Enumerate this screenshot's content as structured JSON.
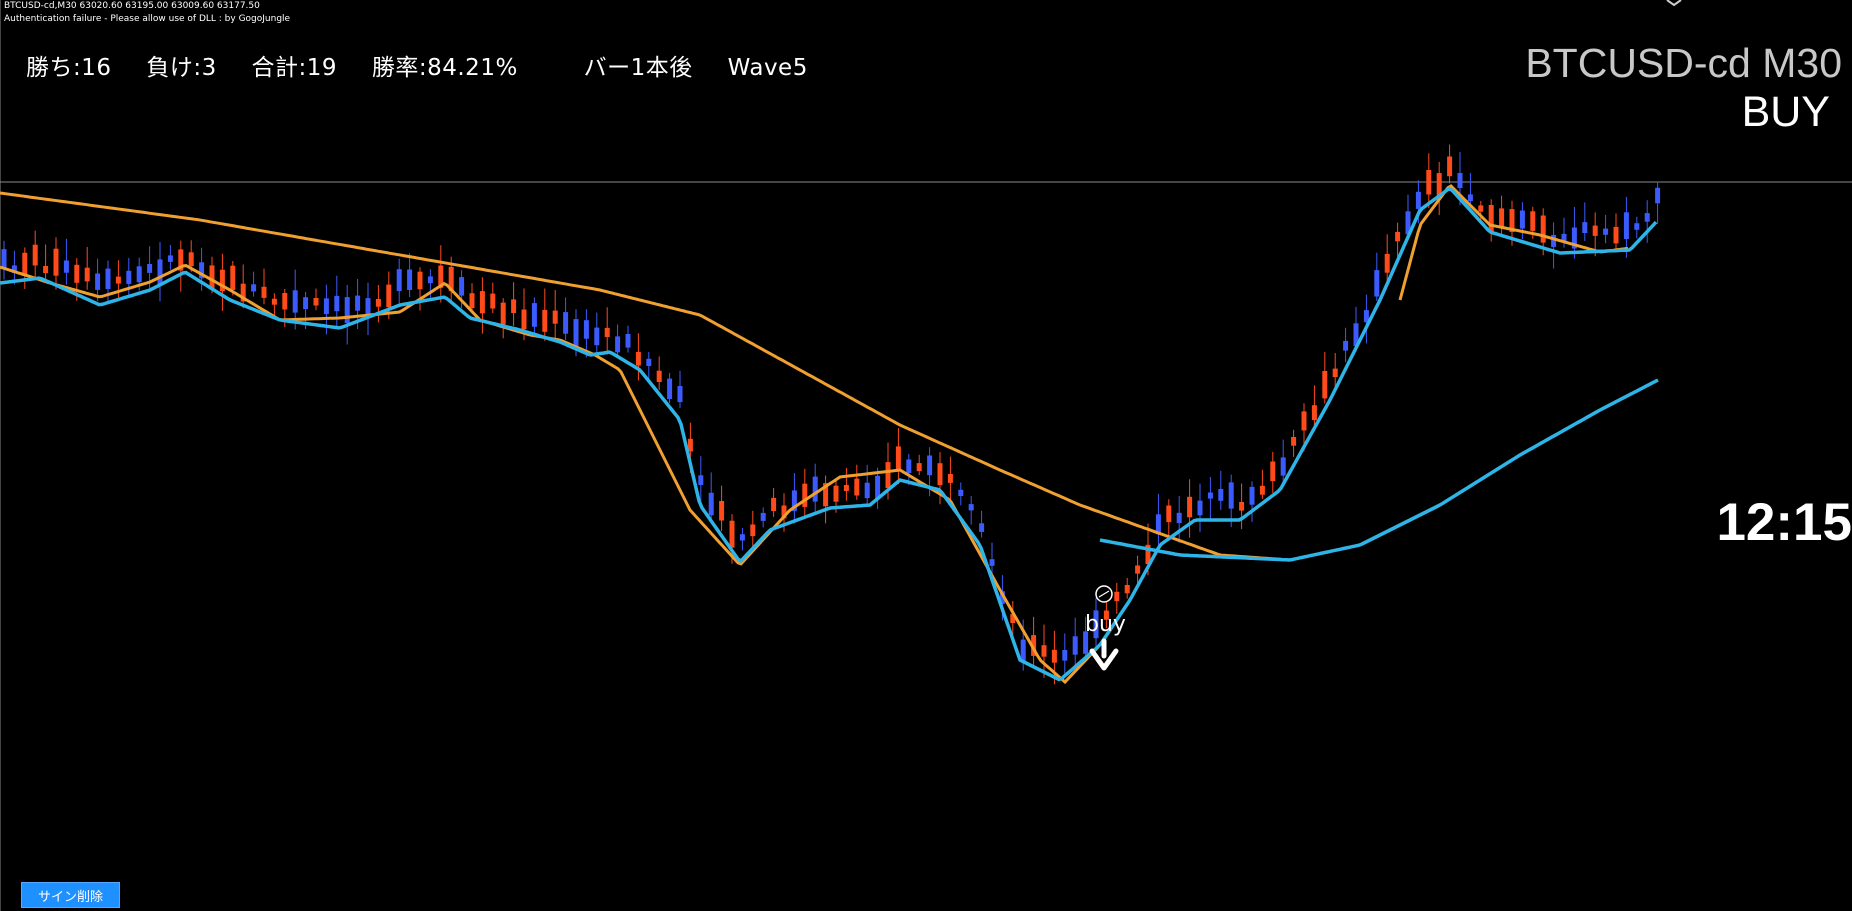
{
  "header": {
    "ohlc_line": "BTCUSD-cd,M30  63020.60 63195.00 63009.60 63177.50",
    "auth_message": "Authentication failure - Please allow use of DLL : by GogoJungle"
  },
  "stats": {
    "wins": "勝ち:16",
    "losses": "負け:3",
    "total": "合計:19",
    "win_rate": "勝率:84.21%",
    "bar_setting": "バー1本後",
    "wave": "Wave5"
  },
  "symbol": {
    "title": "BTCUSD-cd M30",
    "signal": "BUY"
  },
  "timer": {
    "value": "12:15"
  },
  "signal_marker": {
    "text": "buy"
  },
  "buttons": {
    "clear_signs": "サイン削除"
  },
  "colors": {
    "background": "#000000",
    "bull_candle": "#3b5bff",
    "bear_candle": "#ff4a1a",
    "ma_fast": "#2eb4e6",
    "ma_slow": "#f0a030",
    "button": "#1e90ff",
    "price_line": "#8a8a8a"
  },
  "chart_data": {
    "type": "candlestick",
    "symbol": "BTCUSD-cd",
    "timeframe": "M30",
    "last_bar": {
      "open": 63020.6,
      "high": 63195.0,
      "low": 63009.6,
      "close": 63177.5
    },
    "candle_count": 160,
    "series": [
      {
        "name": "",
        "kind": "moving-average",
        "color": "#2eb4e6"
      },
      {
        "name": "",
        "kind": "moving-average",
        "color": "#f0a030"
      },
      {
        "name": "",
        "kind": "moving-average",
        "color": "#2eb4e6"
      }
    ],
    "signals": [
      {
        "type": "buy"
      }
    ]
  }
}
